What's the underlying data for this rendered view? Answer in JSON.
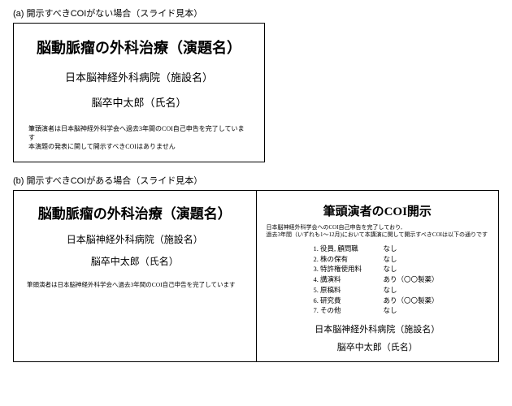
{
  "sectionA": {
    "label": "(a) 開示すべきCOIがない場合（スライド見本）",
    "title": "脳動脈瘤の外科治療（演題名）",
    "institution": "日本脳神経外科病院（施設名）",
    "author": "脳卒中太郎（氏名）",
    "note1": "筆頭演者は日本脳神経外科学会へ過去3年間のCOI自己申告を完了しています",
    "note2": "本演題の発表に関して開示すべきCOIはありません"
  },
  "sectionB": {
    "label": "(b) 開示すべきCOIがある場合（スライド見本）",
    "left": {
      "title": "脳動脈瘤の外科治療（演題名）",
      "institution": "日本脳神経外科病院（施設名）",
      "author": "脳卒中太郎（氏名）",
      "note": "筆頭演者は日本脳神経外科学会へ過去3年間のCOI自己申告を完了しています"
    },
    "right": {
      "title": "筆頭演者のCOI開示",
      "desc1": "日本脳神経外科学会へのCOI自己申告を完了しており,",
      "desc2": "過去3年間（いずれも1～12月)において本講演に関して開示すべきCOIは以下の通りです",
      "items": [
        {
          "label": "1. 役員, 顧問職",
          "value": "なし"
        },
        {
          "label": "2. 株の保有",
          "value": "なし"
        },
        {
          "label": "3. 特許権使用料",
          "value": "なし"
        },
        {
          "label": "4. 講演料",
          "value": "あり（〇〇製薬）"
        },
        {
          "label": "5. 原稿料",
          "value": "なし"
        },
        {
          "label": "6. 研究費",
          "value": "あり（〇〇製薬）"
        },
        {
          "label": "7. その他",
          "value": "なし"
        }
      ],
      "institution": "日本脳神経外科病院（施設名）",
      "author": "脳卒中太郎（氏名）"
    }
  }
}
